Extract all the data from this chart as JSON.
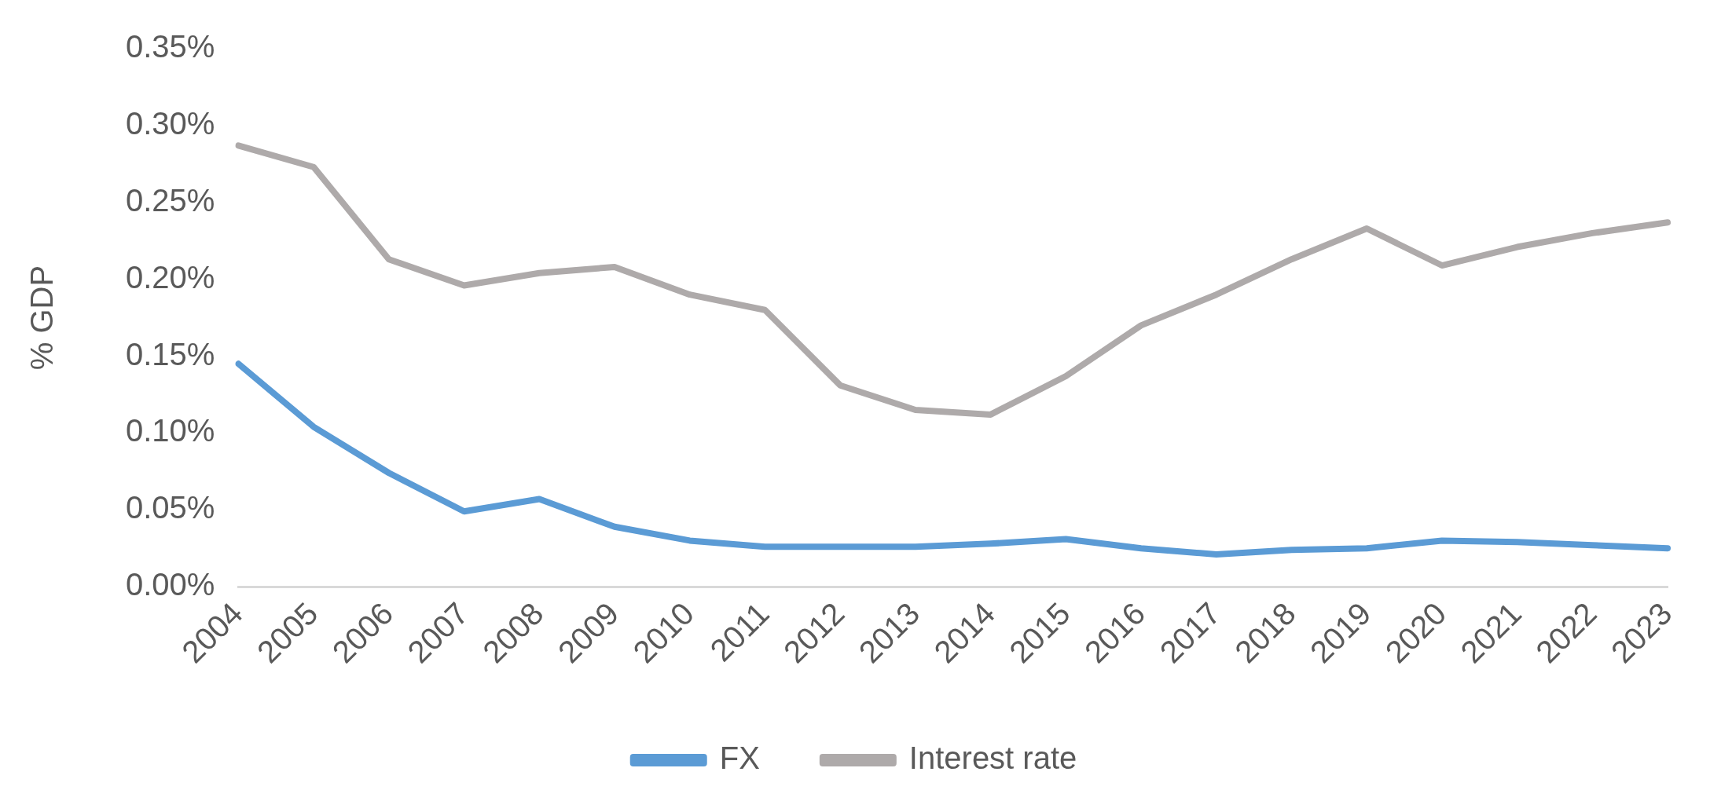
{
  "chart_data": {
    "type": "line",
    "ylabel": "% GDP",
    "categories": [
      "2004",
      "2005",
      "2006",
      "2007",
      "2008",
      "2009",
      "2010",
      "2011",
      "2012",
      "2013",
      "2014",
      "2015",
      "2016",
      "2017",
      "2018",
      "2019",
      "2020",
      "2021",
      "2022",
      "2023"
    ],
    "series": [
      {
        "name": "FX",
        "color": "#5b9bd5",
        "values": [
          0.145,
          0.104,
          0.074,
          0.049,
          0.057,
          0.039,
          0.03,
          0.026,
          0.026,
          0.026,
          0.028,
          0.031,
          0.025,
          0.021,
          0.024,
          0.025,
          0.03,
          0.029,
          0.027,
          0.025
        ]
      },
      {
        "name": "Interest rate",
        "color": "#aeaaaa",
        "values": [
          0.287,
          0.273,
          0.213,
          0.196,
          0.204,
          0.208,
          0.19,
          0.18,
          0.131,
          0.115,
          0.112,
          0.137,
          0.17,
          0.19,
          0.213,
          0.233,
          0.209,
          0.221,
          0.23,
          0.237
        ]
      }
    ],
    "ylim": [
      0,
      0.35
    ],
    "yticks": [
      {
        "value": 0,
        "label": "0.00%"
      },
      {
        "value": 0.05,
        "label": "0.05%"
      },
      {
        "value": 0.1,
        "label": "0.10%"
      },
      {
        "value": 0.15,
        "label": "0.15%"
      },
      {
        "value": 0.2,
        "label": "0.20%"
      },
      {
        "value": 0.25,
        "label": "0.25%"
      },
      {
        "value": 0.3,
        "label": "0.30%"
      },
      {
        "value": 0.35,
        "label": "0.35%"
      }
    ],
    "grid": false,
    "legend": "bottom",
    "marker": "none",
    "line_style": "solid"
  }
}
